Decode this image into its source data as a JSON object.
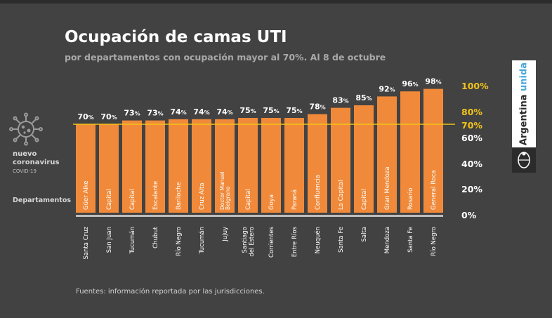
{
  "title": "Ocupación de camas UTI",
  "subtitle": "por departamentos con ocupación mayor al 70%. Al 8 de octubre",
  "covid": {
    "line1": "nuevo",
    "line2": "coronavirus",
    "line3": "COVID-19"
  },
  "section_label": "Departamentos",
  "source": "Fuentes: información reportada por las jurisdicciones.",
  "brand": {
    "part1": "Argentina ",
    "part2": "unida"
  },
  "colors": {
    "background": "#424242",
    "bar": "#f08a3a",
    "threshold": "#f2c318",
    "text": "#ffffff"
  },
  "chart_data": {
    "type": "bar",
    "title": "Ocupación de camas UTI",
    "subtitle": "por departamentos con ocupación mayor al 70%. Al 8 de octubre",
    "ylim": [
      0,
      100
    ],
    "yticks": [
      "0%",
      "20%",
      "40%",
      "60%",
      "70%",
      "80%",
      "100%"
    ],
    "highlighted_ticks": [
      "70%",
      "80%",
      "100%"
    ],
    "threshold": 70,
    "value_suffix": "%",
    "grid": false,
    "bars": [
      {
        "department": "Güer Aike",
        "province": "Santa Cruz",
        "value": 70
      },
      {
        "department": "Capital",
        "province": "San Juan",
        "value": 70
      },
      {
        "department": "Capital",
        "province": "Tucumán",
        "value": 73
      },
      {
        "department": "Escalante",
        "province": "Chubut",
        "value": 73
      },
      {
        "department": "Bariloche",
        "province": "Río Negro",
        "value": 74
      },
      {
        "department": "Cruz Alta",
        "province": "Tucumán",
        "value": 74
      },
      {
        "department": "Doctor Manuel Belgrano",
        "province": "Jujuy",
        "value": 74
      },
      {
        "department": "Capital",
        "province": "Santiago del Estero",
        "value": 75
      },
      {
        "department": "Goya",
        "province": "Corrientes",
        "value": 75
      },
      {
        "department": "Paraná",
        "province": "Entre Ríos",
        "value": 75
      },
      {
        "department": "Confluencia",
        "province": "Neuquén",
        "value": 78
      },
      {
        "department": "La Capital",
        "province": "Santa Fe",
        "value": 83
      },
      {
        "department": "Capital",
        "province": "Salta",
        "value": 85
      },
      {
        "department": "Gran Mendoza",
        "province": "Mendoza",
        "value": 92
      },
      {
        "department": "Rosario",
        "province": "Santa Fe",
        "value": 96
      },
      {
        "department": "General Roca",
        "province": "Río Negro",
        "value": 98
      }
    ]
  }
}
